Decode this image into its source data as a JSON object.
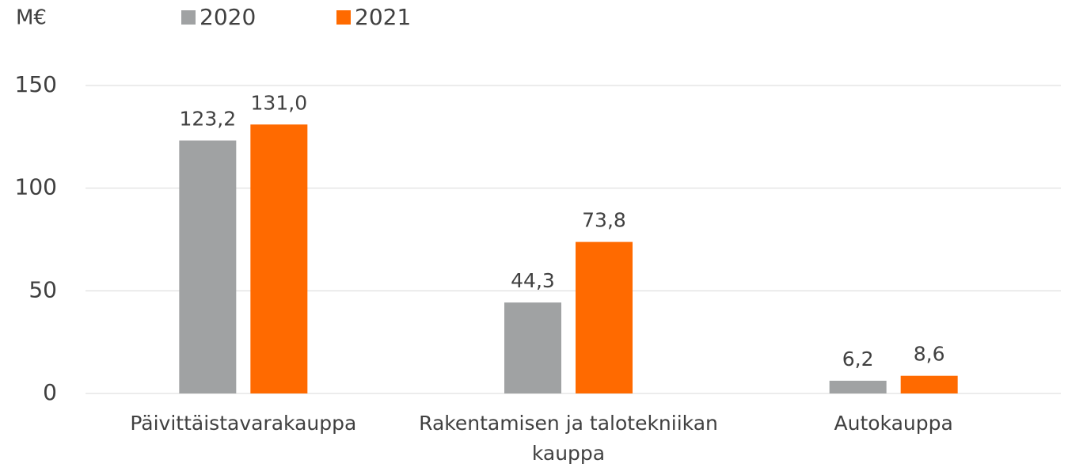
{
  "chart_data": {
    "type": "bar",
    "y_axis_label": "M€",
    "categories": [
      "Päivittäistavarakauppa",
      "Rakentamisen ja talotekniikan kauppa",
      "Autokauppa"
    ],
    "series": [
      {
        "name": "2020",
        "color": "#a0a2a3",
        "values": [
          123.2,
          44.3,
          6.2
        ],
        "value_labels": [
          "123,2",
          "44,3",
          "6,2"
        ]
      },
      {
        "name": "2021",
        "color": "#ff6a00",
        "values": [
          131.0,
          73.8,
          8.6
        ],
        "value_labels": [
          "131,0",
          "73,8",
          "8,6"
        ]
      }
    ],
    "ylim": [
      0,
      150
    ],
    "yticks": [
      0,
      50,
      100,
      150
    ],
    "grid": true
  }
}
